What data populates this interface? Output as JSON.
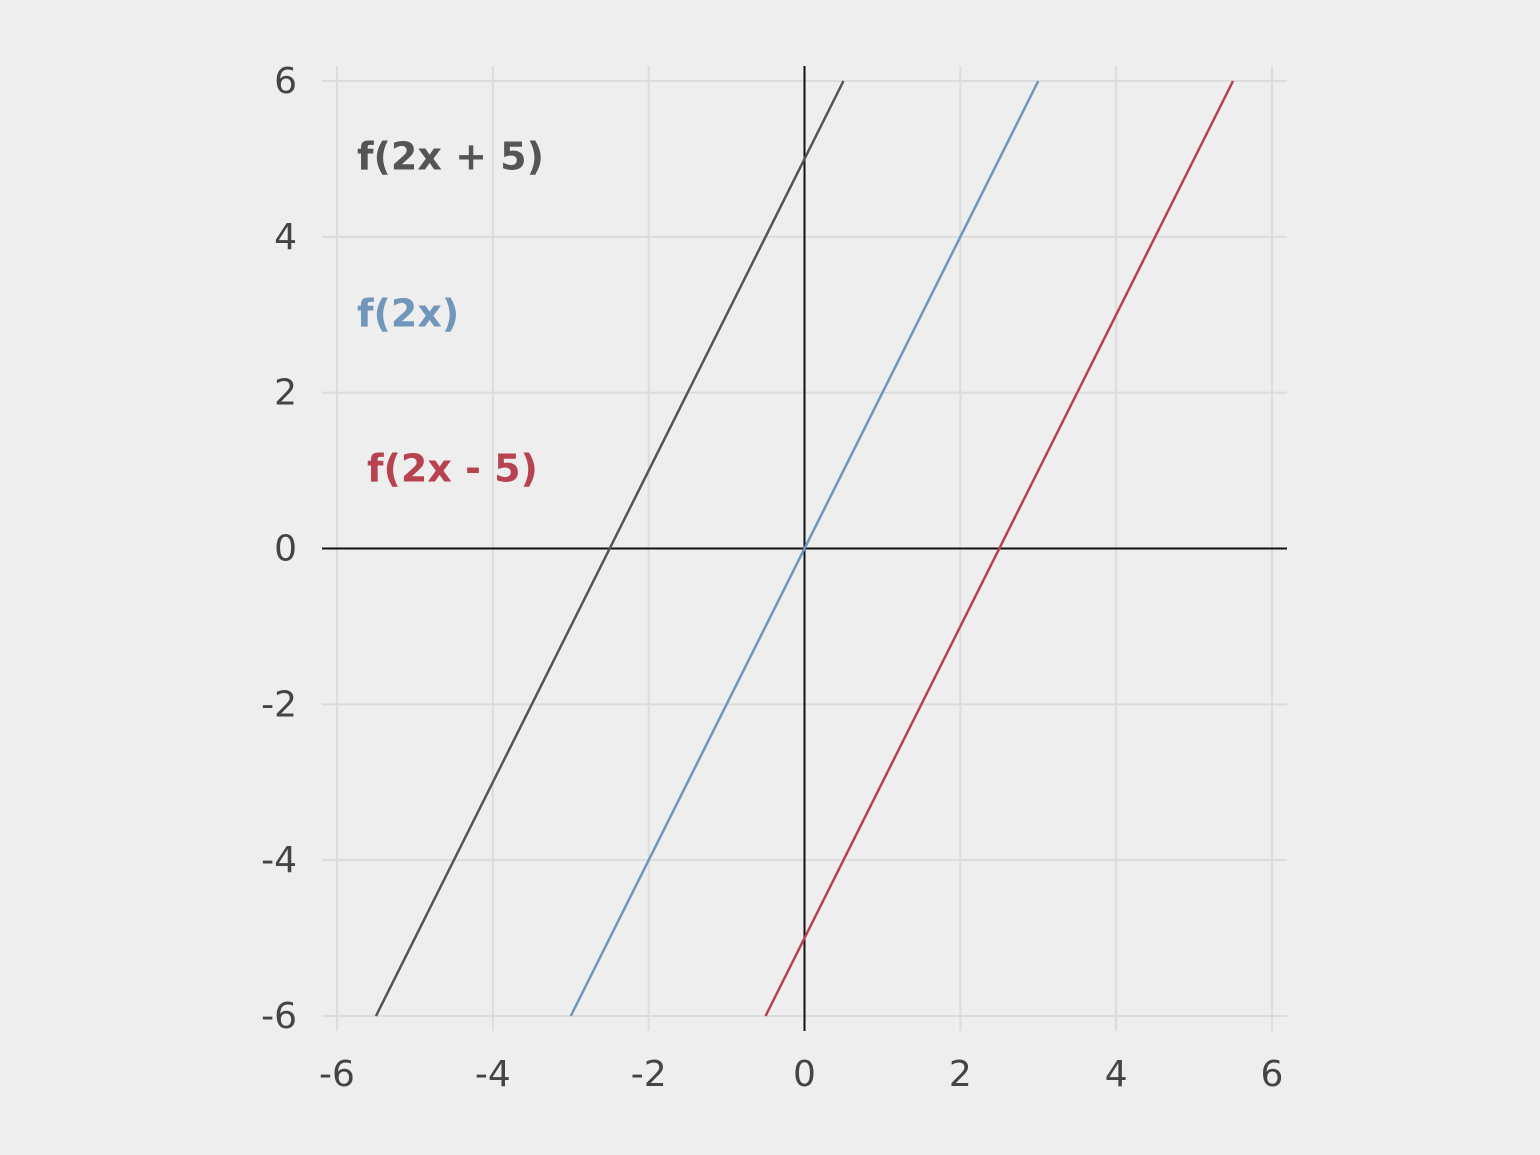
{
  "chart_data": {
    "type": "line",
    "series": [
      {
        "name": "f(2x + 5)",
        "color": "#555555",
        "x": [
          -5.5,
          0.5
        ],
        "values": [
          -6,
          6
        ]
      },
      {
        "name": "f(2x)",
        "color": "#7096b9",
        "x": [
          -3,
          3
        ],
        "values": [
          -6,
          6
        ]
      },
      {
        "name": "f(2x - 5)",
        "color": "#b6434f",
        "x": [
          -0.5,
          5.5
        ],
        "values": [
          -6,
          6
        ]
      }
    ],
    "xlim": [
      -6,
      6
    ],
    "ylim": [
      -6,
      6
    ],
    "xticks": [
      -6,
      -4,
      -2,
      0,
      2,
      4,
      6
    ],
    "yticks": [
      -6,
      -4,
      -2,
      0,
      2,
      4,
      6
    ],
    "grid": true
  }
}
